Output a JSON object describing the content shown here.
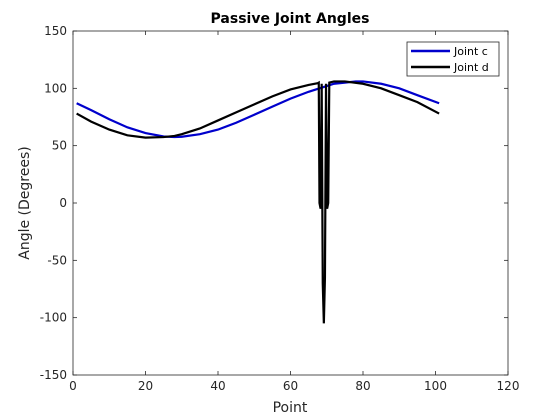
{
  "chart_data": {
    "type": "line",
    "title": "Passive Joint Angles",
    "xlabel": "Point",
    "ylabel": "Angle (Degrees)",
    "xlim": [
      0,
      120
    ],
    "ylim": [
      -150,
      150
    ],
    "xticks": [
      0,
      20,
      40,
      60,
      80,
      100,
      120
    ],
    "yticks": [
      -150,
      -100,
      -50,
      0,
      50,
      100,
      150
    ],
    "grid": false,
    "legend_position": "top-right",
    "series": [
      {
        "name": "Joint c",
        "color": "#0000cc",
        "x": [
          1,
          5,
          10,
          15,
          20,
          25,
          28,
          30,
          35,
          40,
          45,
          50,
          55,
          60,
          65,
          68,
          70,
          72,
          75,
          78,
          80,
          85,
          90,
          95,
          101
        ],
        "y": [
          87,
          81,
          73,
          66,
          61,
          58,
          57.5,
          57.8,
          60,
          64,
          70,
          77,
          84,
          91,
          97,
          100,
          102,
          104,
          105,
          106,
          106,
          104,
          100,
          94,
          87
        ]
      },
      {
        "name": "Joint d",
        "color": "#000000",
        "x": [
          1,
          5,
          10,
          15,
          20,
          25,
          28,
          30,
          35,
          40,
          45,
          50,
          55,
          60,
          65,
          67.5,
          67.8,
          68,
          68.3,
          68.6,
          68.9,
          69.2,
          69.5,
          69.8,
          70.1,
          70.4,
          70.7,
          72,
          75,
          80,
          85,
          90,
          95,
          101
        ],
        "y": [
          78,
          71,
          64,
          59,
          57,
          57.5,
          58.5,
          60,
          65,
          72,
          79,
          86,
          93,
          99,
          103,
          104.5,
          105,
          0,
          -5,
          104,
          -70,
          -105,
          -65,
          104,
          -5,
          0,
          105,
          106,
          106,
          104,
          100,
          94,
          88,
          78
        ]
      }
    ]
  }
}
